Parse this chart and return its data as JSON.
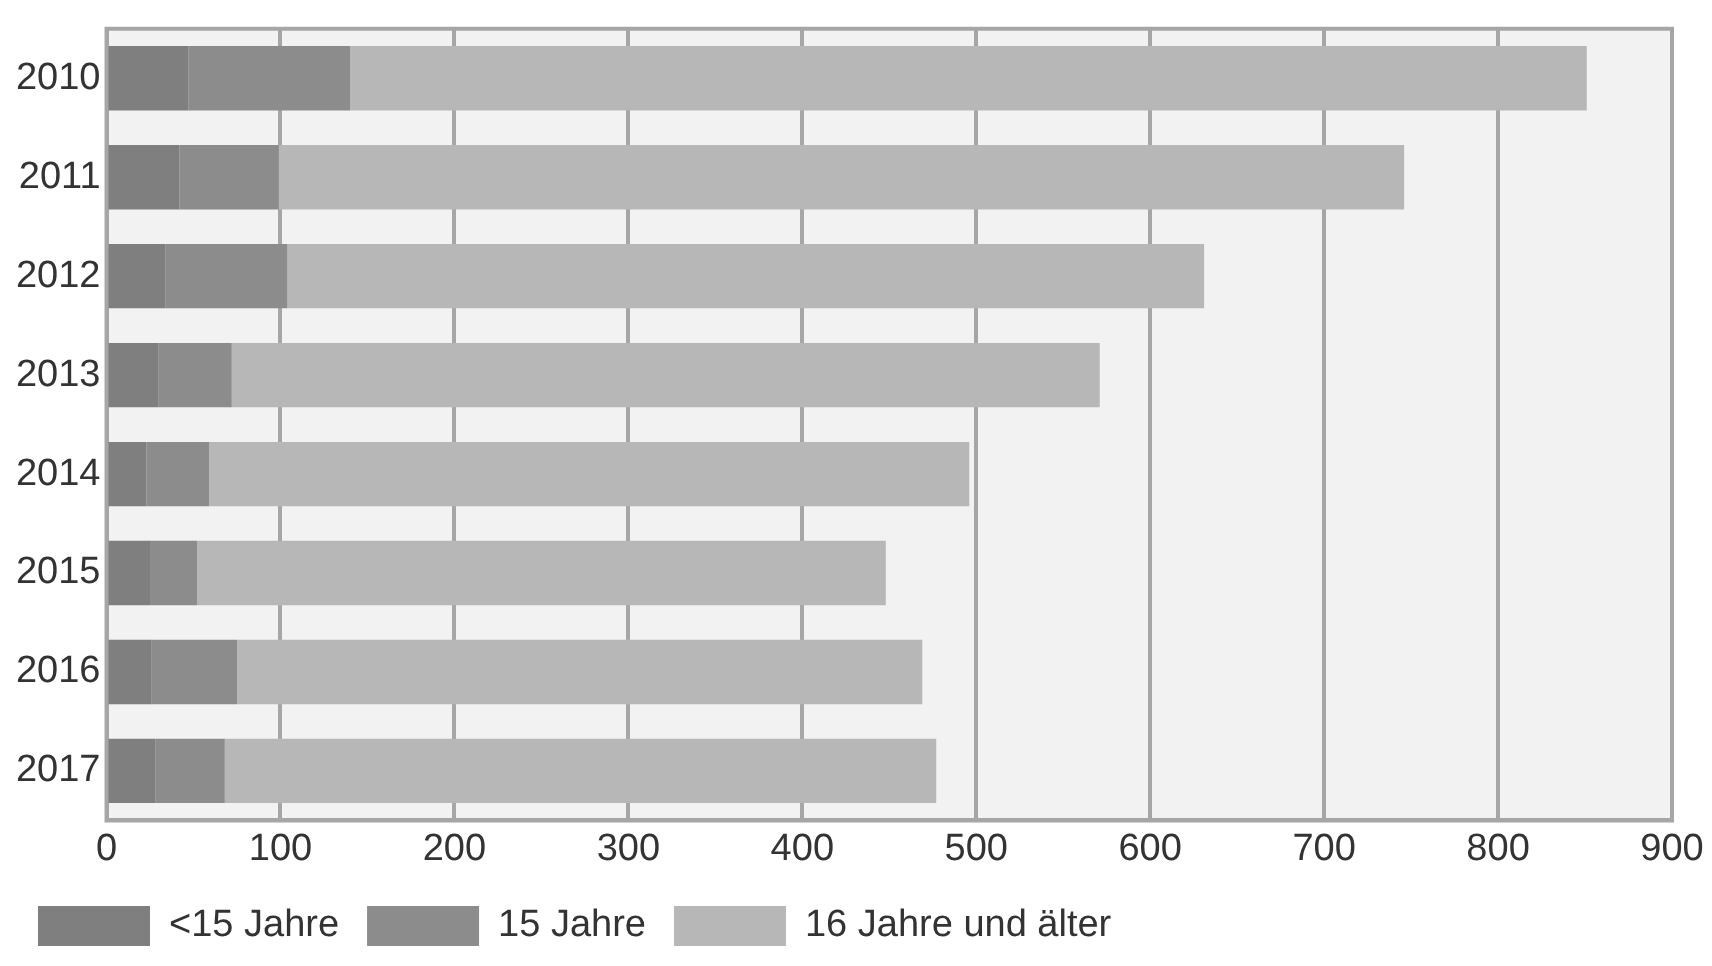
{
  "chart_data": {
    "type": "bar",
    "orientation": "horizontal",
    "stacked": true,
    "categories": [
      "2010",
      "2011",
      "2012",
      "2013",
      "2014",
      "2015",
      "2016",
      "2017"
    ],
    "series": [
      {
        "name": "<15 Jahre",
        "color": "#7f7f7f",
        "values": [
          47,
          42,
          34,
          30,
          23,
          25,
          26,
          28
        ]
      },
      {
        "name": "15 Jahre",
        "color": "#8c8c8c",
        "values": [
          93,
          57,
          70,
          42,
          36,
          27,
          49,
          40
        ]
      },
      {
        "name": "16 Jahre und älter",
        "color": "#b7b7b7",
        "values": [
          711,
          647,
          527,
          499,
          437,
          396,
          394,
          409
        ]
      }
    ],
    "xlim": [
      0,
      900
    ],
    "xticks": [
      0,
      100,
      200,
      300,
      400,
      500,
      600,
      700,
      800,
      900
    ],
    "grid": "x",
    "legend": "bottom"
  }
}
